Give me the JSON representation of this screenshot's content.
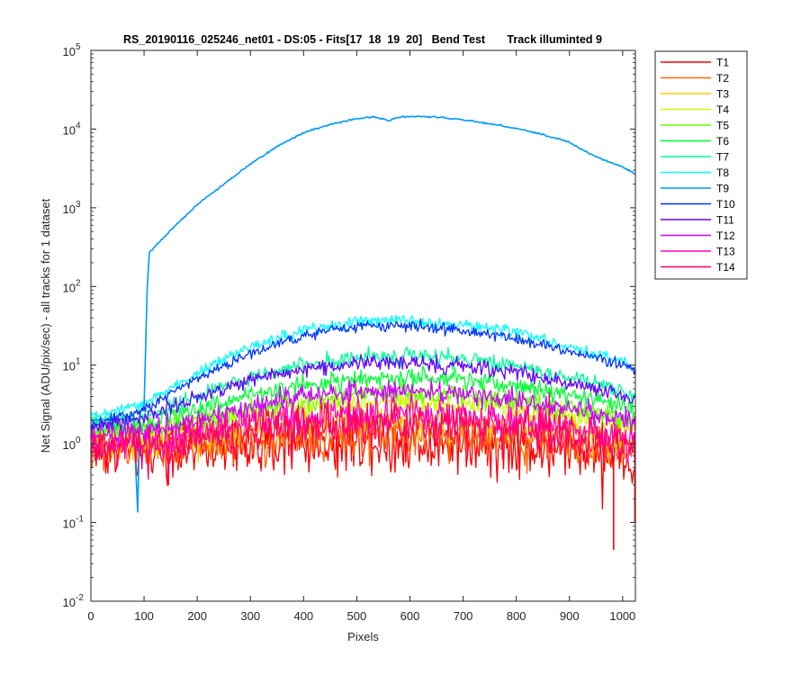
{
  "chart_data": {
    "type": "line",
    "title": "RS_20190116_025246_net01 - DS:05 - Fits[17  18  19  20]   Bend Test       Track illuminted 9",
    "xlabel": "Pixels",
    "ylabel": "Net Signal (ADU/pix/sec) - all tracks for 1 dataset",
    "xlim": [
      0,
      1024
    ],
    "ylim": [
      0.01,
      100000
    ],
    "yscale": "log",
    "x_ticks": [
      0,
      100,
      200,
      300,
      400,
      500,
      600,
      700,
      800,
      900,
      1000
    ],
    "x_tick_labels": [
      "0",
      "100",
      "200",
      "300",
      "400",
      "500",
      "600",
      "700",
      "800",
      "900",
      "1000"
    ],
    "y_ticks": [
      0.01,
      0.1,
      1,
      10,
      100,
      1000,
      10000,
      100000
    ],
    "y_tick_labels": [
      {
        "base": "10",
        "exp": "-2"
      },
      {
        "base": "10",
        "exp": "-1"
      },
      {
        "base": "10",
        "exp": "0"
      },
      {
        "base": "10",
        "exp": "1"
      },
      {
        "base": "10",
        "exp": "2"
      },
      {
        "base": "10",
        "exp": "3"
      },
      {
        "base": "10",
        "exp": "4"
      },
      {
        "base": "10",
        "exp": "5"
      }
    ],
    "legend_position": "outside-right",
    "grid": false,
    "series": [
      {
        "name": "T1",
        "color": "#ff0000",
        "noise": 0.65,
        "x": [
          0,
          100,
          200,
          300,
          400,
          500,
          600,
          700,
          800,
          900,
          1000,
          1024
        ],
        "y": [
          0.85,
          0.75,
          0.85,
          0.95,
          1.0,
          1.05,
          1.05,
          1.0,
          1.0,
          0.8,
          0.7,
          0.45
        ]
      },
      {
        "name": "T2",
        "color": "#ff6600",
        "noise": 0.45,
        "x": [
          0,
          100,
          200,
          300,
          400,
          500,
          600,
          700,
          800,
          900,
          1000,
          1024
        ],
        "y": [
          0.9,
          0.85,
          0.95,
          1.1,
          1.2,
          1.3,
          1.3,
          1.25,
          1.2,
          1.0,
          0.85,
          0.7
        ]
      },
      {
        "name": "T3",
        "color": "#ffcc00",
        "noise": 0.38,
        "x": [
          0,
          100,
          200,
          300,
          400,
          500,
          600,
          700,
          800,
          900,
          1000,
          1024
        ],
        "y": [
          1.0,
          1.0,
          1.2,
          1.5,
          1.8,
          2.0,
          2.0,
          1.9,
          1.7,
          1.4,
          1.1,
          0.9
        ]
      },
      {
        "name": "T4",
        "color": "#ccff00",
        "noise": 0.3,
        "x": [
          0,
          100,
          200,
          300,
          400,
          500,
          600,
          700,
          800,
          900,
          1000,
          1024
        ],
        "y": [
          1.3,
          1.3,
          1.7,
          2.3,
          2.9,
          3.2,
          3.3,
          3.1,
          2.7,
          2.2,
          1.7,
          1.5
        ]
      },
      {
        "name": "T5",
        "color": "#66ff00",
        "noise": 0.28,
        "x": [
          0,
          100,
          200,
          300,
          400,
          500,
          600,
          700,
          800,
          900,
          1000,
          1024
        ],
        "y": [
          1.4,
          1.5,
          2.0,
          2.8,
          3.6,
          4.2,
          4.3,
          4.0,
          3.5,
          2.8,
          2.1,
          1.8
        ]
      },
      {
        "name": "T6",
        "color": "#00ff33",
        "noise": 0.25,
        "x": [
          0,
          100,
          200,
          300,
          400,
          500,
          600,
          700,
          800,
          900,
          1000,
          1024
        ],
        "y": [
          1.6,
          1.8,
          2.8,
          4.2,
          5.6,
          6.5,
          6.8,
          6.4,
          5.5,
          4.2,
          3.1,
          2.6
        ]
      },
      {
        "name": "T7",
        "color": "#00ff99",
        "noise": 0.22,
        "x": [
          0,
          100,
          200,
          300,
          400,
          500,
          600,
          700,
          800,
          900,
          1000,
          1024
        ],
        "y": [
          1.9,
          2.2,
          4.0,
          7.0,
          10.0,
          12.5,
          13.0,
          12.0,
          10.0,
          7.0,
          4.8,
          4.0
        ]
      },
      {
        "name": "T8",
        "color": "#00ffff",
        "noise": 0.15,
        "x": [
          0,
          100,
          200,
          300,
          400,
          500,
          600,
          700,
          800,
          900,
          1000,
          1024
        ],
        "y": [
          2.2,
          3.2,
          8.0,
          17.0,
          28.0,
          36.0,
          37.0,
          33.0,
          26.0,
          17.0,
          11.0,
          9.0
        ]
      },
      {
        "name": "T9",
        "color": "#0099ff",
        "noise": 0.02,
        "x": [
          0,
          80,
          88,
          92,
          100,
          106,
          110,
          120,
          150,
          200,
          250,
          300,
          350,
          400,
          450,
          500,
          530,
          550,
          560,
          575,
          600,
          630,
          650,
          700,
          750,
          800,
          850,
          900,
          940,
          960,
          1000,
          1024
        ],
        "y": [
          2.0,
          2.1,
          0.14,
          2.5,
          3.0,
          100,
          270,
          320,
          520,
          1100,
          2000,
          3600,
          6000,
          9000,
          11500,
          13500,
          14300,
          13500,
          12800,
          14000,
          14600,
          14500,
          14200,
          13100,
          11700,
          10200,
          8500,
          6800,
          4800,
          4200,
          3300,
          2700
        ]
      },
      {
        "name": "T10",
        "color": "#0033ff",
        "noise": 0.15,
        "x": [
          0,
          100,
          200,
          300,
          400,
          500,
          600,
          700,
          800,
          900,
          1000,
          1024
        ],
        "y": [
          1.7,
          2.8,
          7.0,
          14.0,
          24.0,
          31.0,
          32.0,
          28.0,
          22.0,
          15.0,
          10.0,
          8.5
        ]
      },
      {
        "name": "T11",
        "color": "#6600ff",
        "noise": 0.2,
        "x": [
          0,
          100,
          200,
          300,
          400,
          500,
          600,
          700,
          800,
          900,
          1000,
          1024
        ],
        "y": [
          1.6,
          2.2,
          3.8,
          6.5,
          9.0,
          10.5,
          10.8,
          10.0,
          8.2,
          6.0,
          4.2,
          3.5
        ]
      },
      {
        "name": "T12",
        "color": "#cc00ff",
        "noise": 0.28,
        "x": [
          0,
          100,
          200,
          300,
          400,
          500,
          600,
          700,
          800,
          900,
          1000,
          1024
        ],
        "y": [
          1.3,
          1.4,
          2.0,
          3.0,
          4.0,
          4.6,
          4.7,
          4.3,
          3.6,
          2.8,
          2.1,
          1.8
        ]
      },
      {
        "name": "T13",
        "color": "#ff00cc",
        "noise": 0.4,
        "x": [
          0,
          100,
          200,
          300,
          400,
          500,
          600,
          700,
          800,
          900,
          1000,
          1024
        ],
        "y": [
          1.0,
          1.0,
          1.4,
          1.9,
          2.3,
          2.5,
          2.5,
          2.3,
          2.1,
          1.7,
          1.3,
          1.1
        ]
      },
      {
        "name": "T14",
        "color": "#ff0066",
        "noise": 0.5,
        "x": [
          0,
          100,
          200,
          300,
          400,
          500,
          600,
          700,
          800,
          900,
          1000,
          1024
        ],
        "y": [
          0.95,
          0.9,
          1.2,
          1.5,
          1.7,
          1.8,
          1.8,
          1.7,
          1.6,
          1.3,
          1.0,
          0.85
        ]
      }
    ],
    "annotations": [
      {
        "series": "T1",
        "x": 983,
        "y": 0.045
      },
      {
        "series": "T1",
        "x": 1023,
        "y": 0.1
      },
      {
        "series": "T14",
        "x": 862,
        "y": 4.5
      }
    ]
  }
}
